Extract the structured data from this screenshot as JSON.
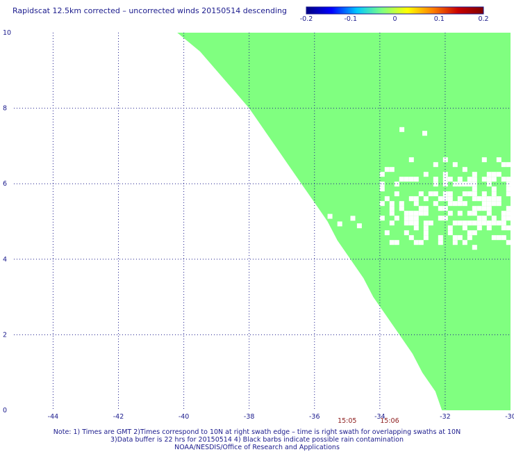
{
  "title": "Rapidscat 12.5km corrected – uncorrected winds 20150514 descending",
  "colorbar": {
    "ticks": [
      "-0.2",
      "-0.1",
      "0",
      "0.1",
      "0.2"
    ],
    "tick_values": [
      -0.2,
      -0.1,
      0,
      0.1,
      0.2
    ],
    "stops": [
      "#000080",
      "#0000ff",
      "#00c8ff",
      "#80ff80",
      "#ffff00",
      "#ff8000",
      "#c80000",
      "#800000"
    ]
  },
  "chart_data": {
    "type": "heatmap",
    "title": "Rapidscat 12.5km corrected – uncorrected winds 20150514 descending",
    "xlim": [
      -45.2,
      -30
    ],
    "ylim": [
      0,
      10
    ],
    "x_ticks": [
      -44,
      -42,
      -40,
      -38,
      -36,
      -34,
      -32,
      -30
    ],
    "x_tick_labels": [
      "-44",
      "-42",
      "-40",
      "-38",
      "-36",
      "-34",
      "-32",
      "-30"
    ],
    "y_ticks": [
      0,
      2,
      4,
      6,
      8,
      10
    ],
    "y_tick_labels": [
      "0",
      "2",
      "4",
      "6",
      "8",
      "10"
    ],
    "grid": true,
    "fill_value": 0,
    "fill_color": "#80ff80",
    "swath_left_edge": [
      [
        -40.2,
        10
      ],
      [
        -39.5,
        9.5
      ],
      [
        -39.0,
        9.0
      ],
      [
        -38.5,
        8.5
      ],
      [
        -38.0,
        8.0
      ],
      [
        -37.6,
        7.5
      ],
      [
        -37.2,
        7.0
      ],
      [
        -36.8,
        6.5
      ],
      [
        -36.4,
        6.0
      ],
      [
        -36.0,
        5.5
      ],
      [
        -35.6,
        5.0
      ],
      [
        -35.3,
        4.5
      ],
      [
        -34.9,
        4.0
      ],
      [
        -34.5,
        3.5
      ],
      [
        -34.2,
        3.0
      ],
      [
        -33.8,
        2.5
      ],
      [
        -33.4,
        2.0
      ],
      [
        -33.0,
        1.5
      ],
      [
        -32.7,
        1.0
      ],
      [
        -32.3,
        0.5
      ],
      [
        -32.1,
        0.0
      ]
    ],
    "missing_region": {
      "x_range": [
        -34.0,
        -30.1
      ],
      "y_range": [
        4.3,
        6.7
      ]
    },
    "swath_times": [
      {
        "label": "15:05",
        "x": -35.0
      },
      {
        "label": "15:06",
        "x": -33.7
      }
    ]
  },
  "notes": [
    "Note: 1) Times are GMT 2)Times correspond to 10N at right swath edge – time is right swath for overlapping swaths at 10N",
    "3)Data buffer is 22 hrs for 20150514 4) Black barbs indicate possible rain contamination",
    "NOAA/NESDIS/Office of Research and Applications"
  ]
}
